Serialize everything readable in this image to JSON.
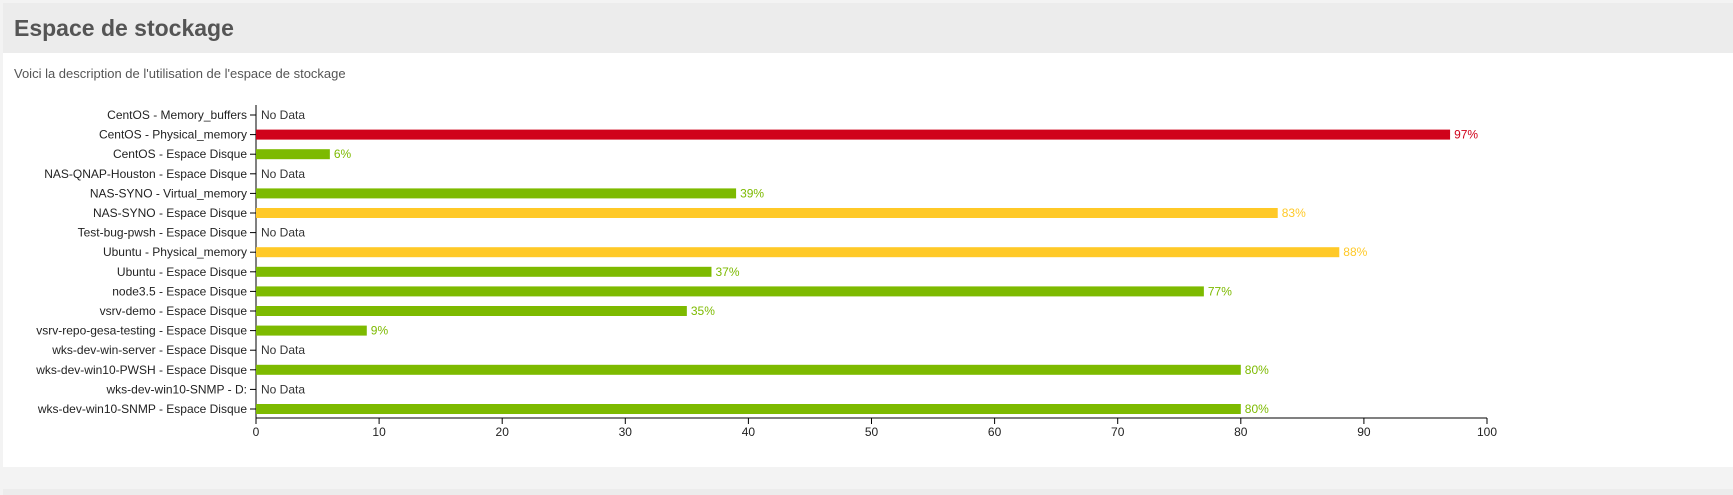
{
  "panel": {
    "title": "Espace de stockage",
    "description": "Voici la description de l'utilisation de l'espace de stockage"
  },
  "colors": {
    "ok": "#7dba00",
    "warning": "#ffc927",
    "critical": "#d0021b",
    "axis": "#000000",
    "label": "#222222",
    "no_data_text": "#333333"
  },
  "chart_data": {
    "type": "bar",
    "orientation": "horizontal",
    "xlim": [
      0,
      100
    ],
    "xticks": [
      0,
      10,
      20,
      30,
      40,
      50,
      60,
      70,
      80,
      90,
      100
    ],
    "value_suffix": "%",
    "no_data_label": "No Data",
    "categories": [
      "CentOS - Memory_buffers",
      "CentOS - Physical_memory",
      "CentOS - Espace Disque",
      "NAS-QNAP-Houston - Espace Disque",
      "NAS-SYNO - Virtual_memory",
      "NAS-SYNO - Espace Disque",
      "Test-bug-pwsh - Espace Disque",
      "Ubuntu - Physical_memory",
      "Ubuntu - Espace Disque",
      "node3.5 - Espace Disque",
      "vsrv-demo - Espace Disque",
      "vsrv-repo-gesa-testing - Espace Disque",
      "wks-dev-win-server - Espace Disque",
      "wks-dev-win10-PWSH - Espace Disque",
      "wks-dev-win10-SNMP - D:",
      "wks-dev-win10-SNMP - Espace Disque"
    ],
    "values": [
      null,
      97,
      6,
      null,
      39,
      83,
      null,
      88,
      37,
      77,
      35,
      9,
      null,
      80,
      null,
      80
    ],
    "status": [
      "none",
      "critical",
      "ok",
      "none",
      "ok",
      "warning",
      "none",
      "warning",
      "ok",
      "ok",
      "ok",
      "ok",
      "none",
      "ok",
      "none",
      "ok"
    ]
  }
}
